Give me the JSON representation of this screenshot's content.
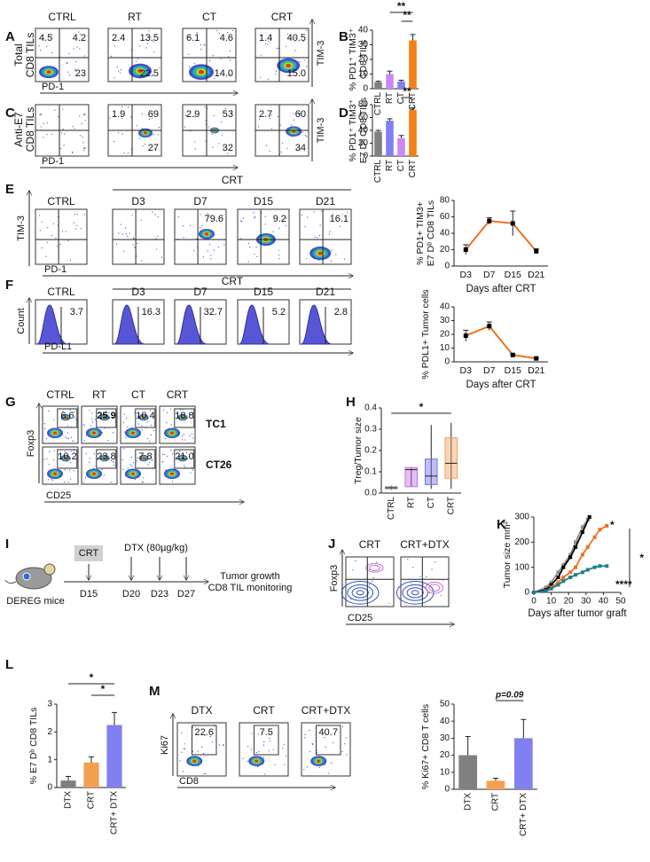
{
  "panel_labels": [
    "A",
    "B",
    "C",
    "D",
    "E",
    "F",
    "G",
    "H",
    "I",
    "J",
    "K",
    "L",
    "M"
  ],
  "flow": [
    {
      "row_label": [
        "Total",
        "CD8 TILs"
      ],
      "xlabel": "PD-1",
      "ylabel": "TIM-3",
      "plots": [
        {
          "title": "CTRL",
          "numbers": [
            "4.5",
            "4.2",
            "23"
          ]
        },
        {
          "title": "RT",
          "numbers": [
            "2.4",
            "13.5",
            "22.5"
          ]
        },
        {
          "title": "CT",
          "numbers": [
            "6.1",
            "4.6",
            "14.0"
          ]
        },
        {
          "title": "CRT",
          "numbers": [
            "1.4",
            "40.5",
            "15.0"
          ]
        }
      ]
    },
    {
      "row_label": [
        "Anti-E7",
        "CD8 TILs"
      ],
      "xlabel": "PD-1",
      "ylabel": "TIM-3",
      "plots": [
        {
          "numbers": [
            "-",
            "-",
            "-"
          ]
        },
        {
          "numbers": [
            "1.9",
            "69",
            "27"
          ]
        },
        {
          "numbers": [
            "2.9",
            "53",
            "32"
          ]
        },
        {
          "numbers": [
            "2.7",
            "60",
            "34"
          ]
        }
      ]
    },
    {
      "group_title": "CRT",
      "xlabel": "PD-1",
      "ylabel": "TIM-3",
      "plots": [
        {
          "title": "CTRL"
        },
        {
          "title": "D3"
        },
        {
          "title": "D7",
          "numbers": [
            "79.6"
          ]
        },
        {
          "title": "D15",
          "numbers": [
            "9.2"
          ]
        },
        {
          "title": "D21",
          "numbers": [
            "16.1"
          ]
        }
      ]
    },
    {
      "group_title": "CRT",
      "xlabel": "PD-L1",
      "ylabel": "Count",
      "plots": [
        {
          "title": "CTRL",
          "numbers": [
            "3.7"
          ]
        },
        {
          "title": "D3",
          "numbers": [
            "16.3"
          ]
        },
        {
          "title": "D7",
          "numbers": [
            "32.7"
          ]
        },
        {
          "title": "D15",
          "numbers": [
            "5.2"
          ]
        },
        {
          "title": "D21",
          "numbers": [
            "2.8"
          ]
        }
      ]
    },
    {
      "titles": [
        "CTRL",
        "RT",
        "CT",
        "CRT"
      ],
      "row_labels": [
        "TC1",
        "CT26"
      ],
      "xlabel": "CD25",
      "ylabel": "Foxp3",
      "plots": [
        {
          "numbers": [
            "6.6"
          ]
        },
        {
          "numbers": [
            "25.9"
          ]
        },
        {
          "numbers": [
            "10.4"
          ]
        },
        {
          "numbers": [
            "18.8"
          ]
        },
        {
          "numbers": [
            "10.2"
          ]
        },
        {
          "numbers": [
            "23.8"
          ]
        },
        {
          "numbers": [
            "7.8"
          ]
        },
        {
          "numbers": [
            "21.0"
          ]
        }
      ]
    },
    {
      "xlabel": "CD25",
      "ylabel": "Foxp3",
      "plots": [
        {
          "title": "CRT"
        },
        {
          "title": "CRT+DTX"
        }
      ]
    },
    {
      "xlabel": "CD8",
      "ylabel": "Ki67",
      "plots": [
        {
          "title": "DTX",
          "numbers": [
            "22.6"
          ]
        },
        {
          "title": "CRT",
          "numbers": [
            "7.5"
          ]
        },
        {
          "title": "CRT+DTX",
          "numbers": [
            "40.7"
          ]
        }
      ]
    }
  ],
  "timeline": {
    "mouse_label": "DEREG mice",
    "treatment": "CRT",
    "dtx": "DTX (80µg/kg)",
    "days": [
      "D15",
      "D20",
      "D23",
      "D27"
    ],
    "outcome": [
      "Tumor growth",
      "CD8 TIL monitoring"
    ]
  },
  "chart_data": [
    {
      "type": "bar",
      "ylabel": [
        "% PD1⁺ TIM3⁺",
        "CD8 TILs"
      ],
      "categories": [
        "CTRL",
        "RT",
        "CT",
        "CRT"
      ],
      "values": [
        4.5,
        10,
        5,
        33
      ],
      "errors": [
        0.6,
        2,
        0.8,
        4
      ],
      "colors": [
        "#808080",
        "#cc88ee",
        "#8080f0",
        "#f57f17"
      ],
      "ylim": [
        0,
        40
      ],
      "yticks": [
        0,
        10,
        20,
        30,
        40
      ],
      "annotations": [
        "**",
        "**"
      ]
    },
    {
      "type": "bar",
      "ylabel": [
        "% PD1⁺ TIM3⁺",
        "E7 Dᵇ CD8 TILs"
      ],
      "categories": [
        "CTRL",
        "RT",
        "CT",
        "CRT"
      ],
      "values": [
        38,
        55,
        28,
        72
      ],
      "errors": [
        2,
        3,
        4,
        3
      ],
      "colors": [
        "#808080",
        "#8080f0",
        "#cc88ee",
        "#f57f17"
      ],
      "ylim": [
        0,
        80
      ],
      "yticks": [
        0,
        20,
        40,
        60,
        80
      ],
      "annotations": [
        "**"
      ]
    },
    {
      "type": "line",
      "ylabel": [
        "% PD1+ TIM3+",
        "E7 Dᵇ CD8 TILs"
      ],
      "xlabel": "Days after CRT",
      "categories": [
        "D3",
        "D7",
        "D15",
        "D21"
      ],
      "values": [
        20,
        55,
        52,
        18
      ],
      "errors": [
        6,
        4,
        15,
        3
      ],
      "color": "#f07020",
      "ylim": [
        0,
        80
      ],
      "yticks": [
        0,
        20,
        40,
        60,
        80
      ]
    },
    {
      "type": "line",
      "ylabel": [
        "% PDL1+ Tumor cells"
      ],
      "xlabel": "Days after CRT",
      "categories": [
        "D3",
        "D7",
        "D15",
        "D21"
      ],
      "values": [
        19,
        26,
        5,
        2.5
      ],
      "errors": [
        4,
        3,
        0.6,
        0.4
      ],
      "color": "#f07020",
      "ylim": [
        0,
        40
      ],
      "yticks": [
        0,
        10,
        20,
        30,
        40
      ]
    },
    {
      "type": "box",
      "ylabel": [
        "Treg/Tumor size"
      ],
      "categories": [
        "CTRL",
        "RT",
        "CT",
        "CRT"
      ],
      "boxes": [
        {
          "min": 0.015,
          "q1": 0.02,
          "median": 0.025,
          "q3": 0.03,
          "max": 0.035
        },
        {
          "min": 0.03,
          "q1": 0.03,
          "median": 0.11,
          "q3": 0.12,
          "max": 0.12
        },
        {
          "min": 0.02,
          "q1": 0.04,
          "median": 0.08,
          "q3": 0.16,
          "max": 0.32
        },
        {
          "min": 0.02,
          "q1": 0.07,
          "median": 0.14,
          "q3": 0.26,
          "max": 0.33
        }
      ],
      "colors": [
        "#a0a0a0",
        "#c070e0",
        "#7070e8",
        "#f0a060"
      ],
      "ylim": [
        0,
        0.4
      ],
      "yticks": [
        {
          "value": 0,
          "label": "0.0"
        },
        0.1,
        0.2,
        0.3,
        0.4
      ],
      "annotations": [
        "*"
      ]
    },
    {
      "type": "xy",
      "ylabel": [
        "Tumor size mm²"
      ],
      "xlabel": "Days after tumor graft",
      "series": [
        {
          "color": "#909090",
          "x": [
            0,
            7,
            10,
            14,
            17,
            21,
            24,
            28,
            31
          ],
          "values": [
            0,
            20,
            40,
            80,
            110,
            150,
            200,
            260,
            290
          ]
        },
        {
          "color": "#000000",
          "x": [
            0,
            7,
            10,
            14,
            17,
            21,
            24,
            28,
            32
          ],
          "values": [
            0,
            10,
            30,
            60,
            100,
            140,
            180,
            240,
            300
          ]
        },
        {
          "color": "#f07020",
          "x": [
            0,
            7,
            10,
            14,
            17,
            21,
            24,
            28,
            31,
            35,
            38,
            42
          ],
          "values": [
            0,
            5,
            20,
            40,
            60,
            80,
            100,
            150,
            180,
            220,
            250,
            265
          ]
        },
        {
          "color": "#1a7f8f",
          "x": [
            0,
            7,
            10,
            14,
            17,
            21,
            24,
            28,
            31,
            35,
            38,
            42
          ],
          "values": [
            0,
            5,
            15,
            30,
            45,
            60,
            70,
            80,
            90,
            100,
            105,
            105
          ]
        }
      ],
      "xlim": [
        0,
        50
      ],
      "xticks": [
        0,
        10,
        20,
        30,
        40,
        50
      ],
      "ylim": [
        0,
        300
      ],
      "yticks": [
        0,
        100,
        200,
        300
      ],
      "annotations": [
        "*",
        "****",
        "*"
      ]
    },
    {
      "type": "bar",
      "ylabel": [
        "% E7 Dᵇ CD8 TILs"
      ],
      "categories": [
        "DTX",
        "CRT",
        "CRT+ DTX"
      ],
      "values": [
        0.25,
        0.9,
        2.25
      ],
      "errors": [
        0.15,
        0.2,
        0.45
      ],
      "colors": [
        "#808080",
        "#f5a050",
        "#8080f0"
      ],
      "ylim": [
        0,
        3
      ],
      "yticks": [
        0,
        1,
        2,
        3
      ],
      "annotations": [
        "*",
        "*"
      ]
    },
    {
      "type": "bar",
      "ylabel": [
        "% Ki67+ CD8 T cells"
      ],
      "categories": [
        "DTX",
        "CRT",
        "CRT+ DTX"
      ],
      "values": [
        20,
        5,
        30
      ],
      "errors": [
        11,
        1.5,
        11
      ],
      "colors": [
        "#808080",
        "#f5a050",
        "#8080f0"
      ],
      "ylim": [
        0,
        50
      ],
      "yticks": [
        0,
        10,
        20,
        30,
        40,
        50
      ],
      "annotations": [
        "p=0.09"
      ]
    }
  ]
}
